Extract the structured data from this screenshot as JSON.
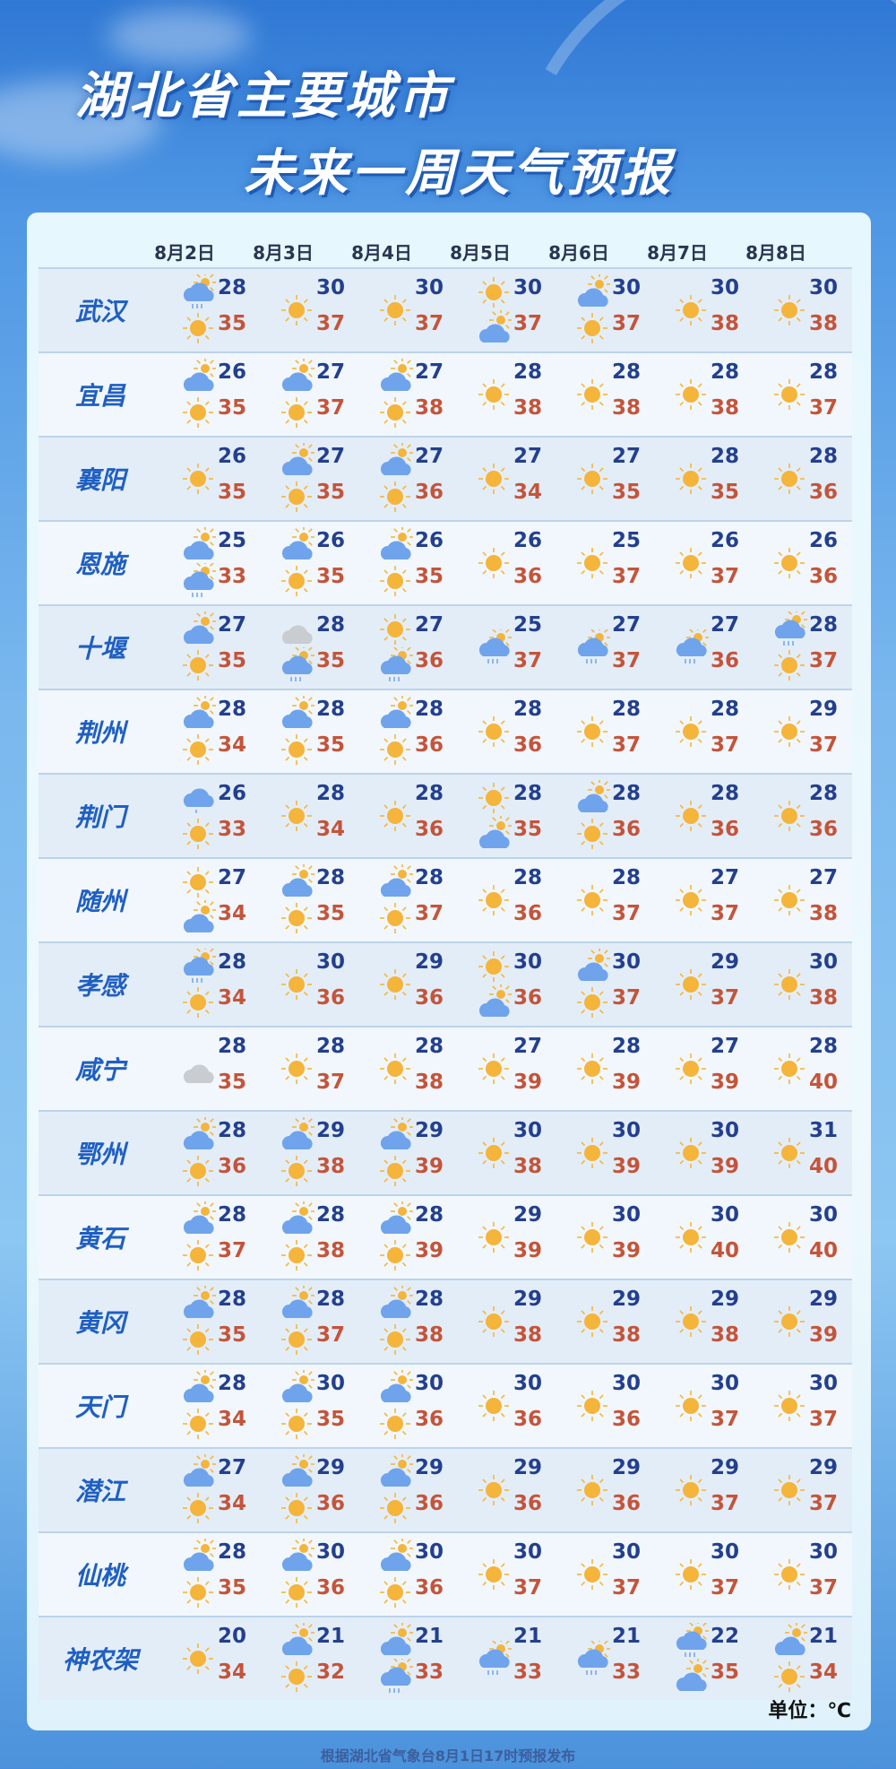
{
  "title": {
    "line1": "湖北省主要城市",
    "line2": "未来一周天气预报"
  },
  "dates": [
    "8月2日",
    "8月3日",
    "8月4日",
    "8月5日",
    "8月6日",
    "8月7日",
    "8月8日"
  ],
  "colors": {
    "low_temp": "#233f8e",
    "high_temp": "#c4543a",
    "city": "#1f5fc2"
  },
  "icon_legend": {
    "sun": "sunny-icon",
    "pc": "partly-cloudy-icon",
    "pcr": "partly-cloudy-rain-icon",
    "drizzle": "cloud-drizzle-icon",
    "ov": "overcast-icon"
  },
  "cities": [
    {
      "name": "武汉",
      "days": [
        {
          "low": 28,
          "high": 35,
          "icons": [
            "pcr",
            "sun"
          ]
        },
        {
          "low": 30,
          "high": 37,
          "icons": [
            "sun"
          ]
        },
        {
          "low": 30,
          "high": 37,
          "icons": [
            "sun"
          ]
        },
        {
          "low": 30,
          "high": 37,
          "icons": [
            "sun",
            "pc"
          ]
        },
        {
          "low": 30,
          "high": 37,
          "icons": [
            "pc",
            "sun"
          ]
        },
        {
          "low": 30,
          "high": 38,
          "icons": [
            "sun"
          ]
        },
        {
          "low": 30,
          "high": 38,
          "icons": [
            "sun"
          ]
        }
      ]
    },
    {
      "name": "宜昌",
      "days": [
        {
          "low": 26,
          "high": 35,
          "icons": [
            "pc",
            "sun"
          ]
        },
        {
          "low": 27,
          "high": 37,
          "icons": [
            "pc",
            "sun"
          ]
        },
        {
          "low": 27,
          "high": 38,
          "icons": [
            "pc",
            "sun"
          ]
        },
        {
          "low": 28,
          "high": 38,
          "icons": [
            "sun"
          ]
        },
        {
          "low": 28,
          "high": 38,
          "icons": [
            "sun"
          ]
        },
        {
          "low": 28,
          "high": 38,
          "icons": [
            "sun"
          ]
        },
        {
          "low": 28,
          "high": 37,
          "icons": [
            "sun"
          ]
        }
      ]
    },
    {
      "name": "襄阳",
      "days": [
        {
          "low": 26,
          "high": 35,
          "icons": [
            "sun"
          ]
        },
        {
          "low": 27,
          "high": 35,
          "icons": [
            "pc",
            "sun"
          ]
        },
        {
          "low": 27,
          "high": 36,
          "icons": [
            "pc",
            "sun"
          ]
        },
        {
          "low": 27,
          "high": 34,
          "icons": [
            "sun"
          ]
        },
        {
          "low": 27,
          "high": 35,
          "icons": [
            "sun"
          ]
        },
        {
          "low": 28,
          "high": 35,
          "icons": [
            "sun"
          ]
        },
        {
          "low": 28,
          "high": 36,
          "icons": [
            "sun"
          ]
        }
      ]
    },
    {
      "name": "恩施",
      "days": [
        {
          "low": 25,
          "high": 33,
          "icons": [
            "pc",
            "pcr"
          ]
        },
        {
          "low": 26,
          "high": 35,
          "icons": [
            "pc",
            "sun"
          ]
        },
        {
          "low": 26,
          "high": 35,
          "icons": [
            "pc",
            "sun"
          ]
        },
        {
          "low": 26,
          "high": 36,
          "icons": [
            "sun"
          ]
        },
        {
          "low": 25,
          "high": 37,
          "icons": [
            "sun"
          ]
        },
        {
          "low": 26,
          "high": 37,
          "icons": [
            "sun"
          ]
        },
        {
          "low": 26,
          "high": 36,
          "icons": [
            "sun"
          ]
        }
      ]
    },
    {
      "name": "十堰",
      "days": [
        {
          "low": 27,
          "high": 35,
          "icons": [
            "pc",
            "sun"
          ]
        },
        {
          "low": 28,
          "high": 35,
          "icons": [
            "ov",
            "pcr"
          ]
        },
        {
          "low": 27,
          "high": 36,
          "icons": [
            "sun",
            "pcr"
          ]
        },
        {
          "low": 25,
          "high": 37,
          "icons": [
            "pcr"
          ]
        },
        {
          "low": 27,
          "high": 37,
          "icons": [
            "pcr"
          ]
        },
        {
          "low": 27,
          "high": 36,
          "icons": [
            "pcr"
          ]
        },
        {
          "low": 28,
          "high": 37,
          "icons": [
            "pcr",
            "sun"
          ]
        }
      ]
    },
    {
      "name": "荆州",
      "days": [
        {
          "low": 28,
          "high": 34,
          "icons": [
            "pc",
            "sun"
          ]
        },
        {
          "low": 28,
          "high": 35,
          "icons": [
            "pc",
            "sun"
          ]
        },
        {
          "low": 28,
          "high": 36,
          "icons": [
            "pc",
            "sun"
          ]
        },
        {
          "low": 28,
          "high": 36,
          "icons": [
            "sun"
          ]
        },
        {
          "low": 28,
          "high": 37,
          "icons": [
            "sun"
          ]
        },
        {
          "low": 28,
          "high": 37,
          "icons": [
            "sun"
          ]
        },
        {
          "low": 29,
          "high": 37,
          "icons": [
            "sun"
          ]
        }
      ]
    },
    {
      "name": "荆门",
      "days": [
        {
          "low": 26,
          "high": 33,
          "icons": [
            "drizzle",
            "sun"
          ]
        },
        {
          "low": 28,
          "high": 34,
          "icons": [
            "sun"
          ]
        },
        {
          "low": 28,
          "high": 36,
          "icons": [
            "sun"
          ]
        },
        {
          "low": 28,
          "high": 35,
          "icons": [
            "sun",
            "pc"
          ]
        },
        {
          "low": 28,
          "high": 36,
          "icons": [
            "pc",
            "sun"
          ]
        },
        {
          "low": 28,
          "high": 36,
          "icons": [
            "sun"
          ]
        },
        {
          "low": 28,
          "high": 36,
          "icons": [
            "sun"
          ]
        }
      ]
    },
    {
      "name": "随州",
      "days": [
        {
          "low": 27,
          "high": 34,
          "icons": [
            "sun",
            "pc"
          ]
        },
        {
          "low": 28,
          "high": 35,
          "icons": [
            "pc",
            "sun"
          ]
        },
        {
          "low": 28,
          "high": 37,
          "icons": [
            "pc",
            "sun"
          ]
        },
        {
          "low": 28,
          "high": 36,
          "icons": [
            "sun"
          ]
        },
        {
          "low": 28,
          "high": 37,
          "icons": [
            "sun"
          ]
        },
        {
          "low": 27,
          "high": 37,
          "icons": [
            "sun"
          ]
        },
        {
          "low": 27,
          "high": 38,
          "icons": [
            "sun"
          ]
        }
      ]
    },
    {
      "name": "孝感",
      "days": [
        {
          "low": 28,
          "high": 34,
          "icons": [
            "pcr",
            "sun"
          ]
        },
        {
          "low": 30,
          "high": 36,
          "icons": [
            "sun"
          ]
        },
        {
          "low": 29,
          "high": 36,
          "icons": [
            "sun"
          ]
        },
        {
          "low": 30,
          "high": 36,
          "icons": [
            "sun",
            "pc"
          ]
        },
        {
          "low": 30,
          "high": 37,
          "icons": [
            "pc",
            "sun"
          ]
        },
        {
          "low": 29,
          "high": 37,
          "icons": [
            "sun"
          ]
        },
        {
          "low": 30,
          "high": 38,
          "icons": [
            "sun"
          ]
        }
      ]
    },
    {
      "name": "咸宁",
      "days": [
        {
          "low": 28,
          "high": 35,
          "icons": [
            "ov"
          ]
        },
        {
          "low": 28,
          "high": 37,
          "icons": [
            "sun"
          ]
        },
        {
          "low": 28,
          "high": 38,
          "icons": [
            "sun"
          ]
        },
        {
          "low": 27,
          "high": 39,
          "icons": [
            "sun"
          ]
        },
        {
          "low": 28,
          "high": 39,
          "icons": [
            "sun"
          ]
        },
        {
          "low": 27,
          "high": 39,
          "icons": [
            "sun"
          ]
        },
        {
          "low": 28,
          "high": 40,
          "icons": [
            "sun"
          ]
        }
      ]
    },
    {
      "name": "鄂州",
      "days": [
        {
          "low": 28,
          "high": 36,
          "icons": [
            "pc",
            "sun"
          ]
        },
        {
          "low": 29,
          "high": 38,
          "icons": [
            "pc",
            "sun"
          ]
        },
        {
          "low": 29,
          "high": 39,
          "icons": [
            "pc",
            "sun"
          ]
        },
        {
          "low": 30,
          "high": 38,
          "icons": [
            "sun"
          ]
        },
        {
          "low": 30,
          "high": 39,
          "icons": [
            "sun"
          ]
        },
        {
          "low": 30,
          "high": 39,
          "icons": [
            "sun"
          ]
        },
        {
          "low": 31,
          "high": 40,
          "icons": [
            "sun"
          ]
        }
      ]
    },
    {
      "name": "黄石",
      "days": [
        {
          "low": 28,
          "high": 37,
          "icons": [
            "pc",
            "sun"
          ]
        },
        {
          "low": 28,
          "high": 38,
          "icons": [
            "pc",
            "sun"
          ]
        },
        {
          "low": 28,
          "high": 39,
          "icons": [
            "pc",
            "sun"
          ]
        },
        {
          "low": 29,
          "high": 39,
          "icons": [
            "sun"
          ]
        },
        {
          "low": 30,
          "high": 39,
          "icons": [
            "sun"
          ]
        },
        {
          "low": 30,
          "high": 40,
          "icons": [
            "sun"
          ]
        },
        {
          "low": 30,
          "high": 40,
          "icons": [
            "sun"
          ]
        }
      ]
    },
    {
      "name": "黄冈",
      "days": [
        {
          "low": 28,
          "high": 35,
          "icons": [
            "pc",
            "sun"
          ]
        },
        {
          "low": 28,
          "high": 37,
          "icons": [
            "pc",
            "sun"
          ]
        },
        {
          "low": 28,
          "high": 38,
          "icons": [
            "pc",
            "sun"
          ]
        },
        {
          "low": 29,
          "high": 38,
          "icons": [
            "sun"
          ]
        },
        {
          "low": 29,
          "high": 38,
          "icons": [
            "sun"
          ]
        },
        {
          "low": 29,
          "high": 38,
          "icons": [
            "sun"
          ]
        },
        {
          "low": 29,
          "high": 39,
          "icons": [
            "sun"
          ]
        }
      ]
    },
    {
      "name": "天门",
      "days": [
        {
          "low": 28,
          "high": 34,
          "icons": [
            "pc",
            "sun"
          ]
        },
        {
          "low": 30,
          "high": 35,
          "icons": [
            "pc",
            "sun"
          ]
        },
        {
          "low": 30,
          "high": 36,
          "icons": [
            "pc",
            "sun"
          ]
        },
        {
          "low": 30,
          "high": 36,
          "icons": [
            "sun"
          ]
        },
        {
          "low": 30,
          "high": 36,
          "icons": [
            "sun"
          ]
        },
        {
          "low": 30,
          "high": 37,
          "icons": [
            "sun"
          ]
        },
        {
          "low": 30,
          "high": 37,
          "icons": [
            "sun"
          ]
        }
      ]
    },
    {
      "name": "潜江",
      "days": [
        {
          "low": 27,
          "high": 34,
          "icons": [
            "pc",
            "sun"
          ]
        },
        {
          "low": 29,
          "high": 36,
          "icons": [
            "pc",
            "sun"
          ]
        },
        {
          "low": 29,
          "high": 36,
          "icons": [
            "pc",
            "sun"
          ]
        },
        {
          "low": 29,
          "high": 36,
          "icons": [
            "sun"
          ]
        },
        {
          "low": 29,
          "high": 36,
          "icons": [
            "sun"
          ]
        },
        {
          "low": 29,
          "high": 37,
          "icons": [
            "sun"
          ]
        },
        {
          "low": 29,
          "high": 37,
          "icons": [
            "sun"
          ]
        }
      ]
    },
    {
      "name": "仙桃",
      "days": [
        {
          "low": 28,
          "high": 35,
          "icons": [
            "pc",
            "sun"
          ]
        },
        {
          "low": 30,
          "high": 36,
          "icons": [
            "pc",
            "sun"
          ]
        },
        {
          "low": 30,
          "high": 36,
          "icons": [
            "pc",
            "sun"
          ]
        },
        {
          "low": 30,
          "high": 37,
          "icons": [
            "sun"
          ]
        },
        {
          "low": 30,
          "high": 37,
          "icons": [
            "sun"
          ]
        },
        {
          "low": 30,
          "high": 37,
          "icons": [
            "sun"
          ]
        },
        {
          "low": 30,
          "high": 37,
          "icons": [
            "sun"
          ]
        }
      ]
    },
    {
      "name": "神农架",
      "days": [
        {
          "low": 20,
          "high": 34,
          "icons": [
            "sun"
          ]
        },
        {
          "low": 21,
          "high": 32,
          "icons": [
            "pc",
            "sun"
          ]
        },
        {
          "low": 21,
          "high": 33,
          "icons": [
            "pc",
            "pcr"
          ]
        },
        {
          "low": 21,
          "high": 33,
          "icons": [
            "pcr"
          ]
        },
        {
          "low": 21,
          "high": 33,
          "icons": [
            "pcr"
          ]
        },
        {
          "low": 22,
          "high": 35,
          "icons": [
            "pcr",
            "pc"
          ]
        },
        {
          "low": 21,
          "high": 34,
          "icons": [
            "pc",
            "sun"
          ]
        }
      ]
    }
  ],
  "unit_label": "单位：℃",
  "footer": "根据湖北省气象台8月1日17时预报发布"
}
